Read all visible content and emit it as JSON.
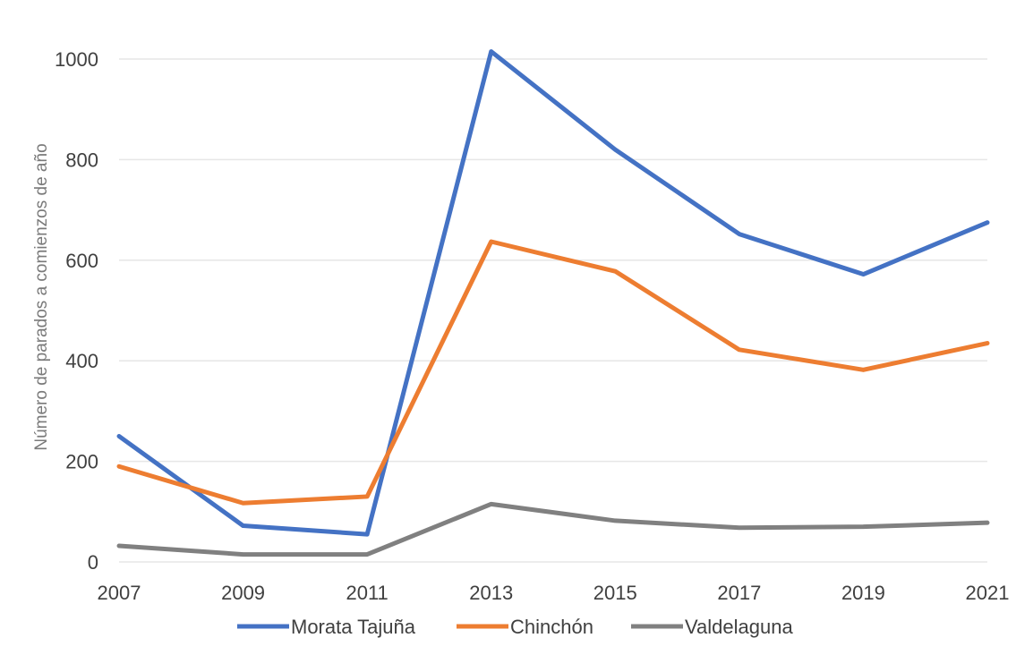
{
  "chart_data": {
    "type": "line",
    "title": "",
    "xlabel": "",
    "ylabel": "Número de parados a comienzos de año",
    "x": [
      2007,
      2009,
      2011,
      2013,
      2015,
      2017,
      2019,
      2021
    ],
    "x_tick_labels": [
      "2007",
      "2009",
      "2011",
      "2013",
      "2015",
      "2017",
      "2019",
      "2021"
    ],
    "y_tick_labels": [
      "0",
      "200",
      "400",
      "600",
      "800",
      "1000"
    ],
    "y_ticks": [
      0,
      200,
      400,
      600,
      800,
      1000
    ],
    "ylim": [
      0,
      1000
    ],
    "grid": true,
    "legend_position": "bottom",
    "series": [
      {
        "name": "Morata Tajuña",
        "color": "#4472c4",
        "values": [
          250,
          72,
          55,
          1015,
          820,
          652,
          572,
          675
        ]
      },
      {
        "name": "Chinchón",
        "color": "#ed7d31",
        "values": [
          190,
          117,
          130,
          637,
          578,
          422,
          382,
          435
        ]
      },
      {
        "name": "Valdelaguna",
        "color": "#808080",
        "values": [
          32,
          15,
          15,
          115,
          82,
          68,
          70,
          78
        ]
      }
    ]
  }
}
